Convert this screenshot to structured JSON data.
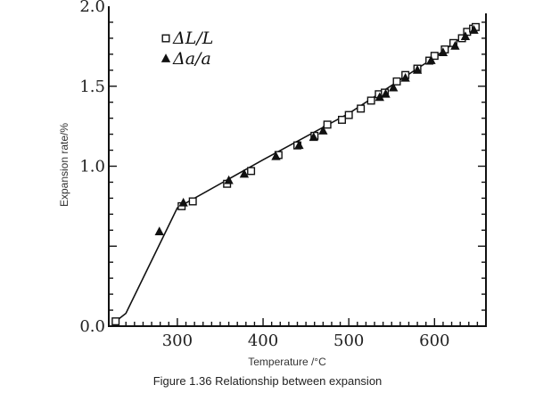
{
  "chart_data": {
    "type": "scatter",
    "xlabel": "Temperature /°C",
    "ylabel": "Expansion rate/%",
    "xlim": [
      220,
      660
    ],
    "ylim": [
      0,
      2.0
    ],
    "x_ticks": [
      300,
      400,
      500,
      600
    ],
    "y_ticks": [
      0.0,
      0.5,
      1.0,
      1.5,
      2.0
    ],
    "y_tick_labels": [
      "0.0",
      "",
      "1.0",
      "1.5",
      "2.0"
    ],
    "legend_position": "top-left",
    "series": [
      {
        "name": "ΔL/L",
        "marker": "open-square",
        "x": [
          228,
          305,
          318,
          358,
          386,
          418,
          440,
          460,
          475,
          492,
          500,
          514,
          526,
          535,
          542,
          556,
          566,
          580,
          594,
          600,
          612,
          622,
          632,
          638,
          645,
          648
        ],
        "y": [
          0.03,
          0.75,
          0.78,
          0.89,
          0.97,
          1.07,
          1.13,
          1.19,
          1.26,
          1.29,
          1.32,
          1.36,
          1.41,
          1.45,
          1.46,
          1.53,
          1.57,
          1.61,
          1.66,
          1.69,
          1.73,
          1.77,
          1.8,
          1.84,
          1.86,
          1.87
        ]
      },
      {
        "name": "Δa/a",
        "marker": "filled-triangle",
        "x": [
          279,
          307,
          360,
          378,
          415,
          442,
          459,
          470,
          536,
          543,
          552,
          566,
          580,
          596,
          610,
          624,
          636,
          646
        ],
        "y": [
          0.59,
          0.77,
          0.91,
          0.95,
          1.06,
          1.13,
          1.18,
          1.22,
          1.43,
          1.45,
          1.49,
          1.55,
          1.6,
          1.66,
          1.71,
          1.75,
          1.81,
          1.85
        ]
      }
    ],
    "fit_line": {
      "x": [
        228,
        240,
        300,
        400,
        500,
        600,
        648
      ],
      "y": [
        0.03,
        0.08,
        0.74,
        1.04,
        1.33,
        1.68,
        1.87
      ]
    }
  },
  "caption": "Figure 1.36 Relationship between expansion"
}
